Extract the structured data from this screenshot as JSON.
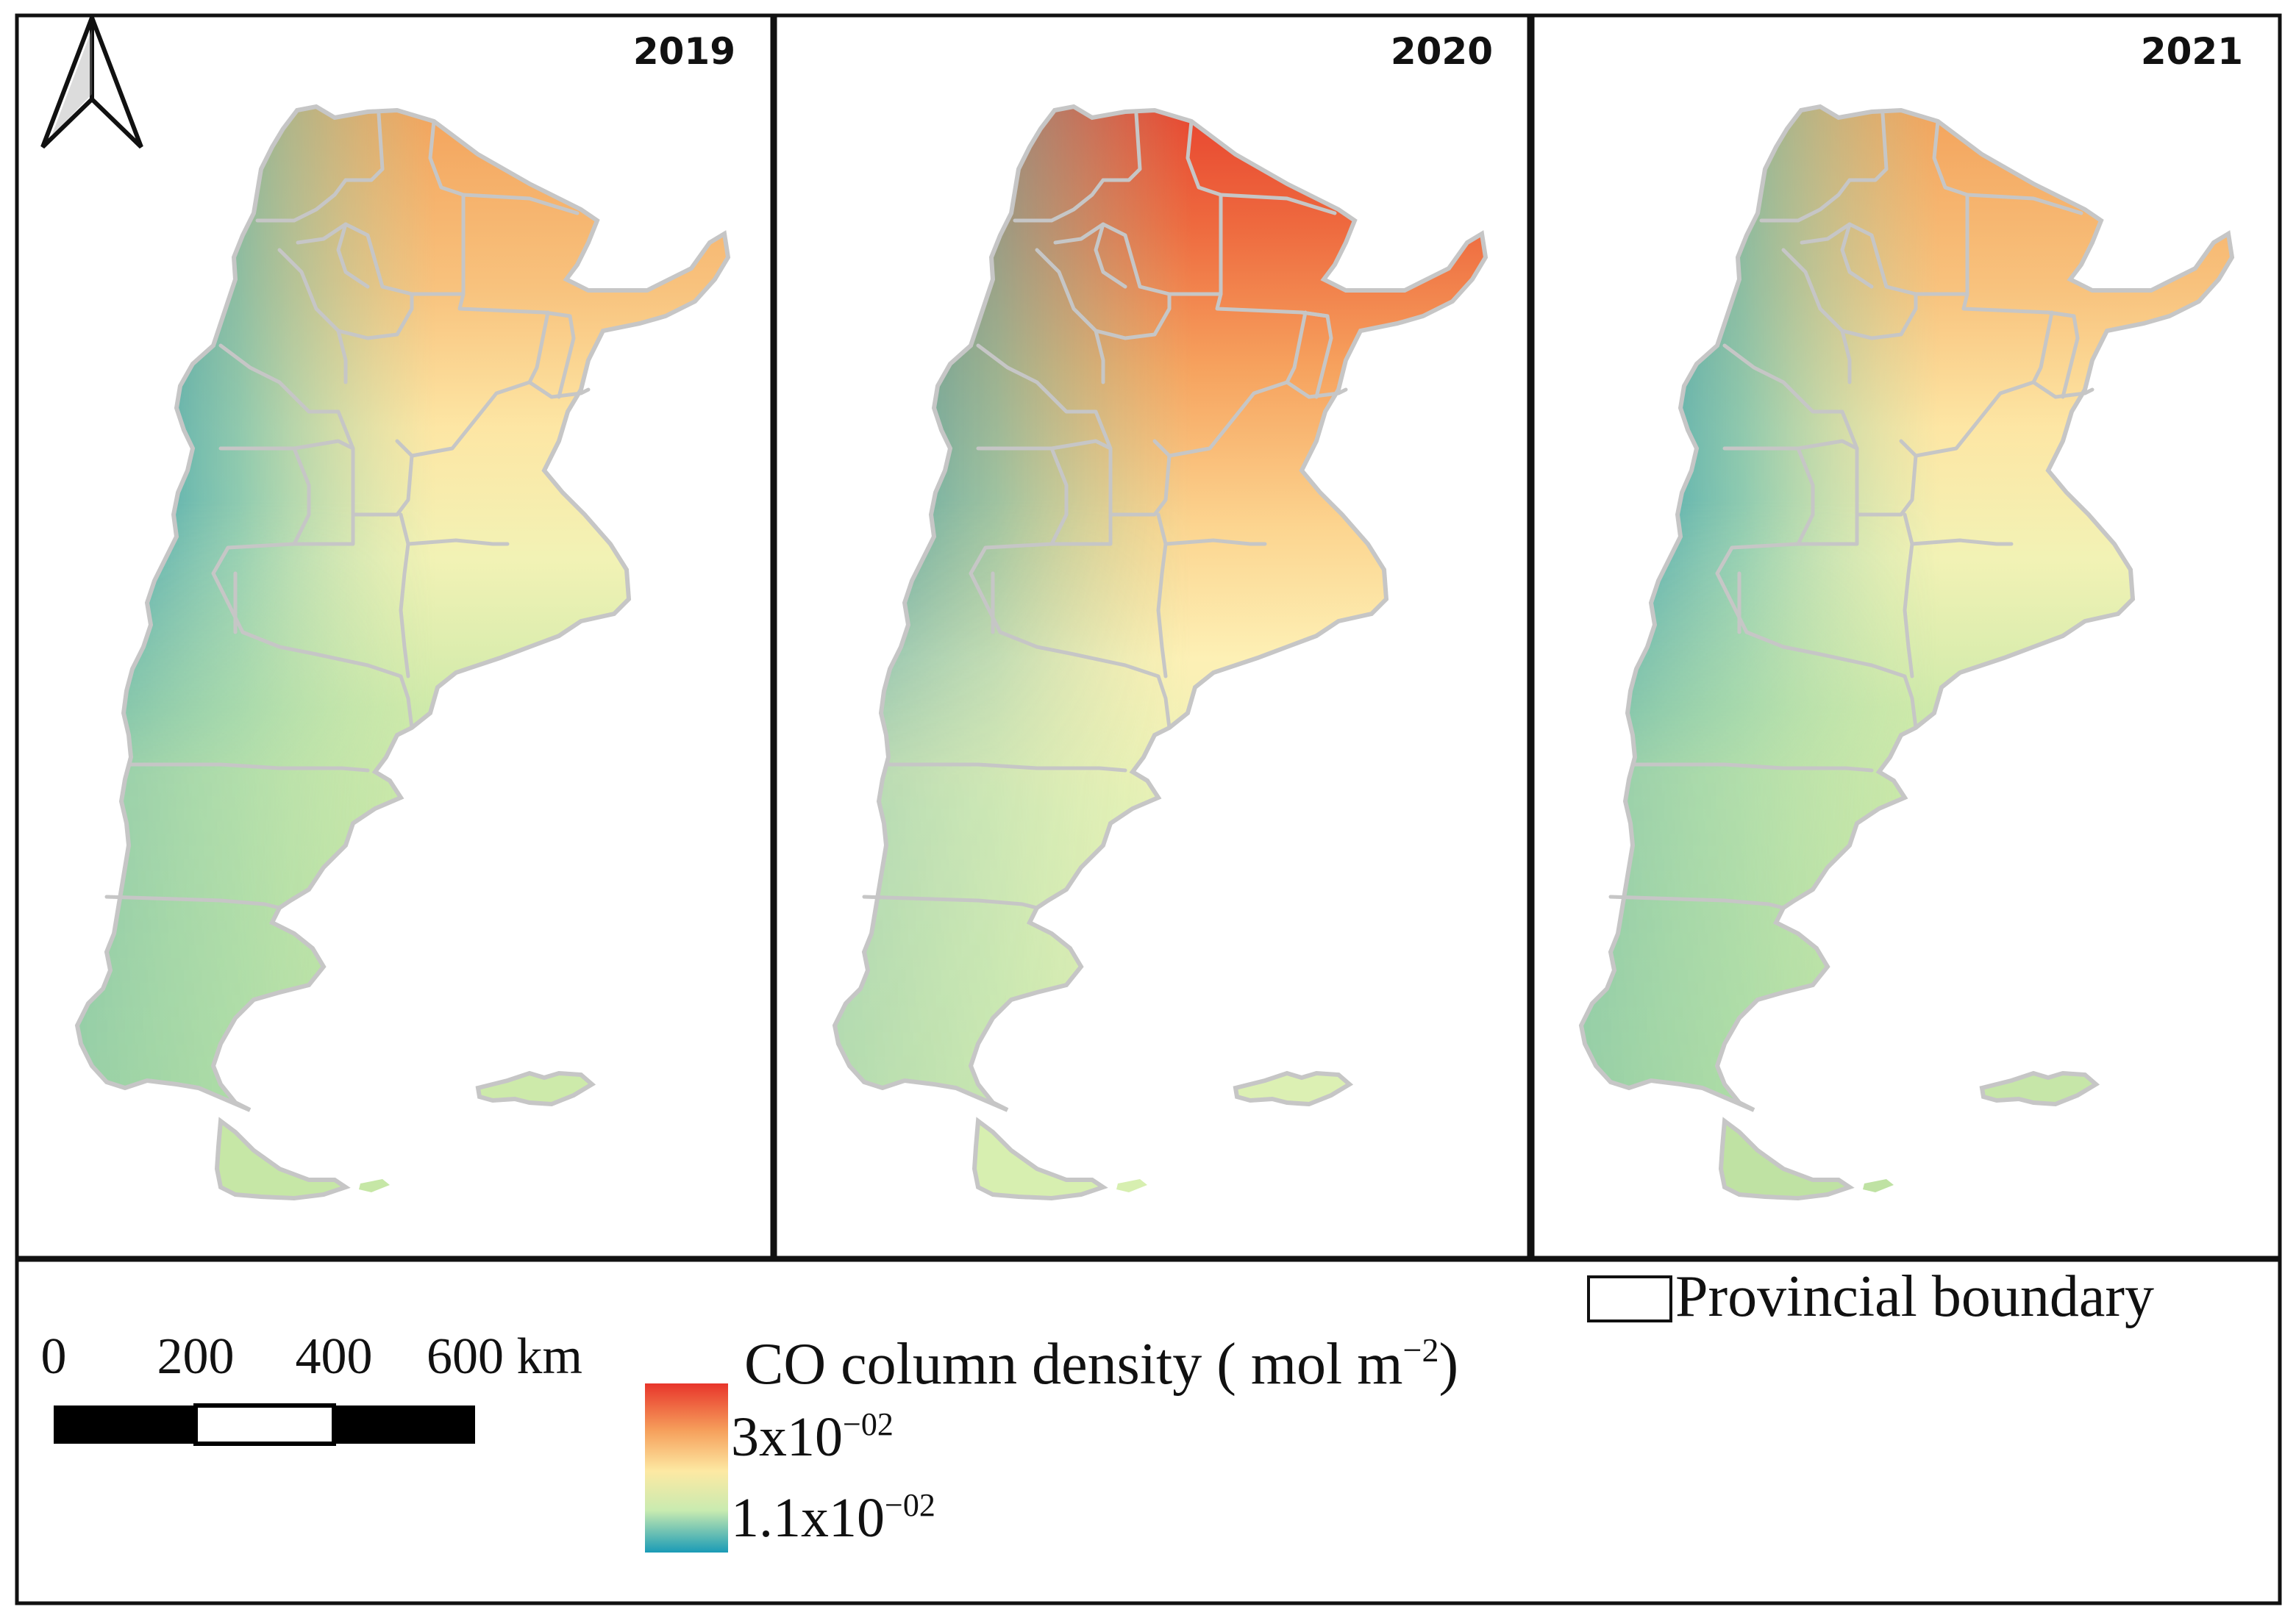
{
  "panels": [
    {
      "year": "2019",
      "regime": "low"
    },
    {
      "year": "2020",
      "regime": "high"
    },
    {
      "year": "2021",
      "regime": "low"
    }
  ],
  "north_arrow": {
    "icon": "north-arrow-icon"
  },
  "scale_bar": {
    "ticks": [
      "0",
      "200",
      "400",
      "600 km"
    ],
    "units": "km"
  },
  "legend": {
    "boundary_label": "Provincial boundary",
    "title": "CO column density ( mol m",
    "title_exponent": "−2",
    "title_close": ")",
    "max_label_base": "3x10",
    "max_label_exp": "−02",
    "min_label_base": "1.1x10",
    "min_label_exp": "−02",
    "ramp_colors": [
      "#e8352b",
      "#f6a05c",
      "#fde9a3",
      "#c9ebb0",
      "#1a9bb6"
    ],
    "boundary_color": "#c6c6c6"
  }
}
